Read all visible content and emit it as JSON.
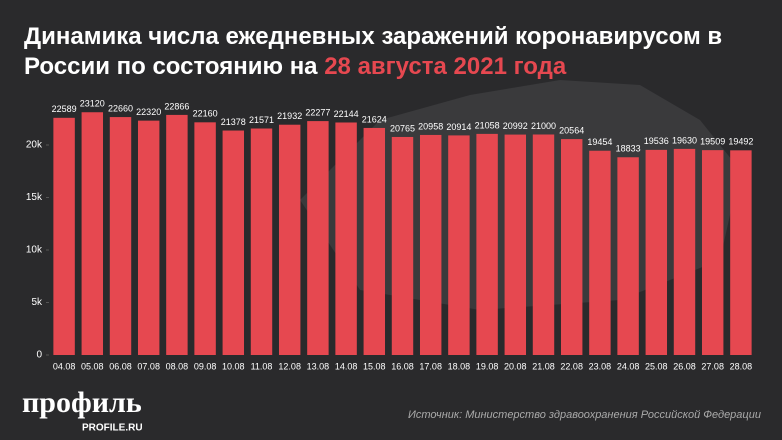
{
  "chart_data": {
    "type": "bar",
    "title": "Динамика числа ежедневных заражений коронавирусом в России по состоянию на",
    "title_date": "28 августа 2021 года",
    "categories": [
      "04.08",
      "05.08",
      "06.08",
      "07.08",
      "08.08",
      "09.08",
      "10.08",
      "11.08",
      "12.08",
      "13.08",
      "14.08",
      "15.08",
      "16.08",
      "17.08",
      "18.08",
      "19.08",
      "20.08",
      "21.08",
      "22.08",
      "23.08",
      "24.08",
      "25.08",
      "26.08",
      "27.08",
      "28.08"
    ],
    "values": [
      22589,
      23120,
      22660,
      22320,
      22866,
      22160,
      21378,
      21571,
      21932,
      22277,
      22144,
      21624,
      20765,
      20958,
      20914,
      21058,
      20992,
      21000,
      20564,
      19454,
      18833,
      19536,
      19630,
      19509,
      19492
    ],
    "color": "#e64850",
    "ylim": [
      0,
      24000
    ],
    "yticks": [
      0,
      {
        "value": 5000,
        "label": "5k"
      },
      {
        "value": 10000,
        "label": "10k"
      },
      {
        "value": 15000,
        "label": "15k"
      },
      {
        "value": 20000,
        "label": "20k"
      }
    ],
    "grid": false,
    "source": "Источник: Министерство здравоохранения Российской Федерации",
    "logo": "профиль",
    "logo_sub": "PROFILE.RU"
  }
}
